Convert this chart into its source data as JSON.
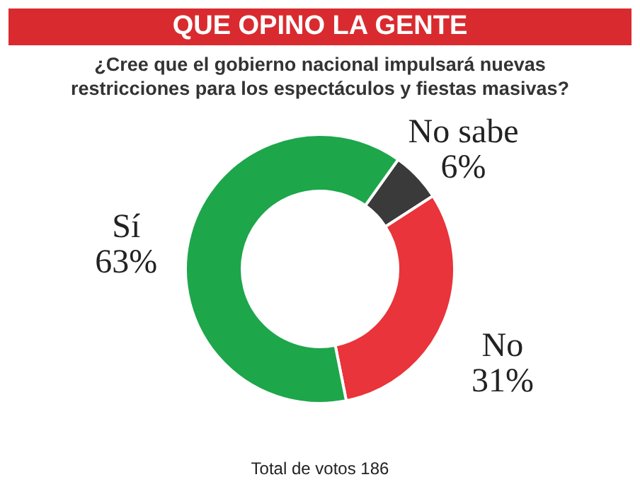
{
  "chart_data": {
    "type": "donut",
    "title": "QUE OPINO LA GENTE",
    "subtitle": "¿Cree que el gobierno nacional impulsará nuevas restricciones para los espectáculos y fiestas masivas?",
    "categories": [
      "No sabe",
      "No",
      "Sí"
    ],
    "values": [
      6,
      31,
      63
    ],
    "colors": [
      "#3a3a3a",
      "#e8343a",
      "#1ea64b"
    ],
    "value_labels": [
      "6%",
      "31%",
      "63%"
    ],
    "annotations": [
      "Total de votos 186"
    ]
  }
}
